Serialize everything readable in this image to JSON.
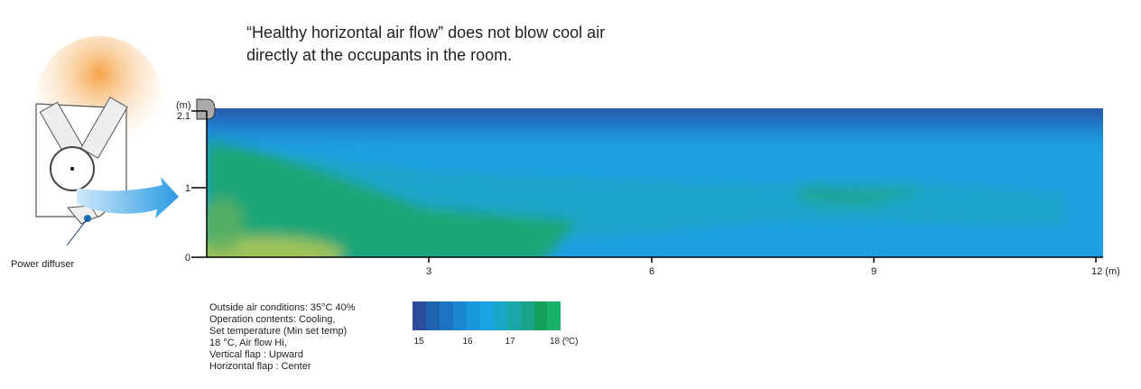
{
  "title": [
    "“Healthy horizontal air flow” does not blow cool air",
    "directly at the occupants in the room."
  ],
  "callout": "Power diffuser",
  "y_axis": {
    "unit": "(m)",
    "ticks": [
      "2.1",
      "1",
      "0"
    ]
  },
  "x_axis": {
    "ticks": [
      "3",
      "6",
      "9",
      "12 (m)"
    ]
  },
  "legend": {
    "labels": [
      "15",
      "16",
      "17",
      "18 (ºC)"
    ]
  },
  "conditions": [
    "Outside air conditions: 35°C 40%",
    "Operation contents: Cooling,",
    "Set temperature (Min set temp)",
    "18 °C, Air flow Hi,",
    "Vertical flap :  Upward",
    "Horizontal flap :  Center"
  ]
}
